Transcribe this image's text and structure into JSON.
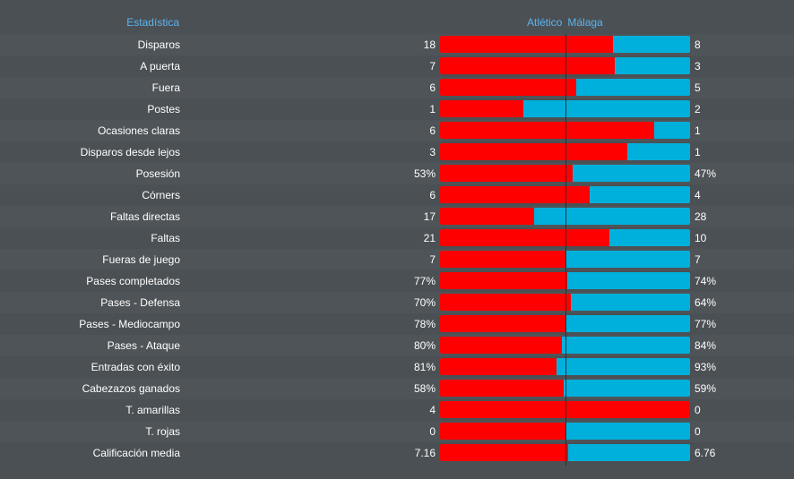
{
  "header": {
    "stat_label": "Estadística",
    "home_team": "Atlético",
    "away_team": "Málaga"
  },
  "colors": {
    "home": "#ff0000",
    "away": "#00b0dc",
    "header_text": "#5ab4ee",
    "background": "#4b5054"
  },
  "stats": [
    {
      "label": "Disparos",
      "home": "18",
      "away": "8",
      "home_share": 0.69
    },
    {
      "label": "A puerta",
      "home": "7",
      "away": "3",
      "home_share": 0.7
    },
    {
      "label": "Fuera",
      "home": "6",
      "away": "5",
      "home_share": 0.545
    },
    {
      "label": "Postes",
      "home": "1",
      "away": "2",
      "home_share": 0.335
    },
    {
      "label": "Ocasiones claras",
      "home": "6",
      "away": "1",
      "home_share": 0.857
    },
    {
      "label": "Disparos desde lejos",
      "home": "3",
      "away": "1",
      "home_share": 0.75
    },
    {
      "label": "Posesión",
      "home": "53%",
      "away": "47%",
      "home_share": 0.53
    },
    {
      "label": "Córners",
      "home": "6",
      "away": "4",
      "home_share": 0.6
    },
    {
      "label": "Faltas directas",
      "home": "17",
      "away": "28",
      "home_share": 0.378
    },
    {
      "label": "Faltas",
      "home": "21",
      "away": "10",
      "home_share": 0.677
    },
    {
      "label": "Fueras de juego",
      "home": "7",
      "away": "7",
      "home_share": 0.5
    },
    {
      "label": "Pases completados",
      "home": "77%",
      "away": "74%",
      "home_share": 0.51
    },
    {
      "label": "Pases - Defensa",
      "home": "70%",
      "away": "64%",
      "home_share": 0.522
    },
    {
      "label": "Pases - Mediocampo",
      "home": "78%",
      "away": "77%",
      "home_share": 0.503
    },
    {
      "label": "Pases - Ataque",
      "home": "80%",
      "away": "84%",
      "home_share": 0.488
    },
    {
      "label": "Entradas con éxito",
      "home": "81%",
      "away": "93%",
      "home_share": 0.466
    },
    {
      "label": "Cabezazos ganados",
      "home": "58%",
      "away": "59%",
      "home_share": 0.496
    },
    {
      "label": "T. amarillas",
      "home": "4",
      "away": "0",
      "home_share": 1.0
    },
    {
      "label": "T. rojas",
      "home": "0",
      "away": "0",
      "home_share": 0.5
    },
    {
      "label": "Calificación media",
      "home": "7.16",
      "away": "6.76",
      "home_share": 0.514
    }
  ]
}
